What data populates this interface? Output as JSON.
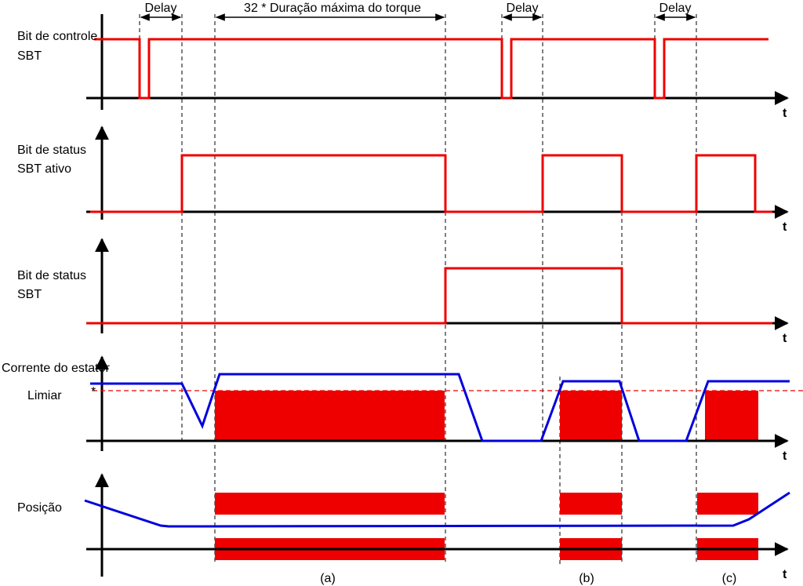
{
  "annotations": {
    "delays": [
      "Delay",
      "Delay",
      "Delay"
    ],
    "torque_duration": "32 * Duração máxima do torque"
  },
  "rows": [
    {
      "label": [
        "Bit de controle",
        "SBT"
      ],
      "axis": "t"
    },
    {
      "label": [
        "Bit de status",
        "SBT ativo"
      ],
      "axis": "t"
    },
    {
      "label": [
        "Bit de status",
        "SBT"
      ],
      "axis": "t"
    },
    {
      "label": [
        "Corrente do estator"
      ],
      "axis": "t"
    },
    {
      "label": [
        "Posição"
      ],
      "axis": "t"
    }
  ],
  "threshold": {
    "label": "Limiar",
    "marker": "*"
  },
  "cases": [
    "(a)",
    "(b)",
    "(c)"
  ]
}
